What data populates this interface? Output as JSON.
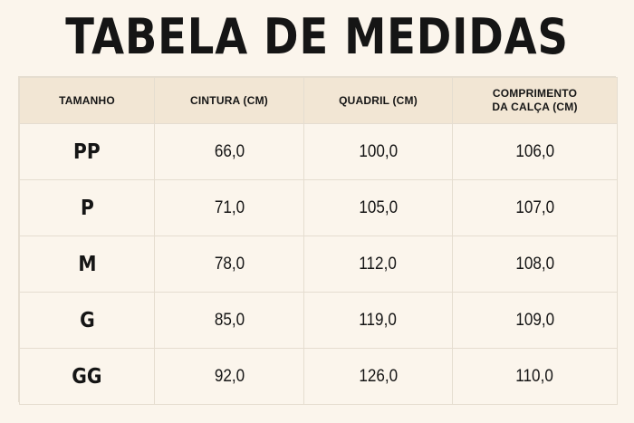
{
  "title": "TABELA DE MEDIDAS",
  "table": {
    "headers": [
      "TAMANHO",
      "CINTURA (CM)",
      "QUADRIL (CM)",
      "COMPRIMENTO\nDA CALÇA (CM)"
    ],
    "rows": [
      {
        "size": "PP",
        "cintura": "66,0",
        "quadril": "100,0",
        "comprimento": "106,0"
      },
      {
        "size": "P",
        "cintura": "71,0",
        "quadril": "105,0",
        "comprimento": "107,0"
      },
      {
        "size": "M",
        "cintura": "78,0",
        "quadril": "112,0",
        "comprimento": "108,0"
      },
      {
        "size": "G",
        "cintura": "85,0",
        "quadril": "119,0",
        "comprimento": "109,0"
      },
      {
        "size": "GG",
        "cintura": "92,0",
        "quadril": "126,0",
        "comprimento": "110,0"
      }
    ]
  },
  "chart_data": {
    "type": "table",
    "title": "TABELA DE MEDIDAS",
    "columns": [
      "TAMANHO",
      "CINTURA (CM)",
      "QUADRIL (CM)",
      "COMPRIMENTO DA CALÇA (CM)"
    ],
    "rows": [
      [
        "PP",
        66.0,
        100.0,
        106.0
      ],
      [
        "P",
        71.0,
        105.0,
        107.0
      ],
      [
        "M",
        78.0,
        112.0,
        108.0
      ],
      [
        "G",
        85.0,
        119.0,
        109.0
      ],
      [
        "GG",
        92.0,
        126.0,
        110.0
      ]
    ]
  },
  "colors": {
    "background": "#fbf5ec",
    "header_background": "#f2e6d4",
    "grid": "#e5ddd0",
    "text": "#151515"
  }
}
